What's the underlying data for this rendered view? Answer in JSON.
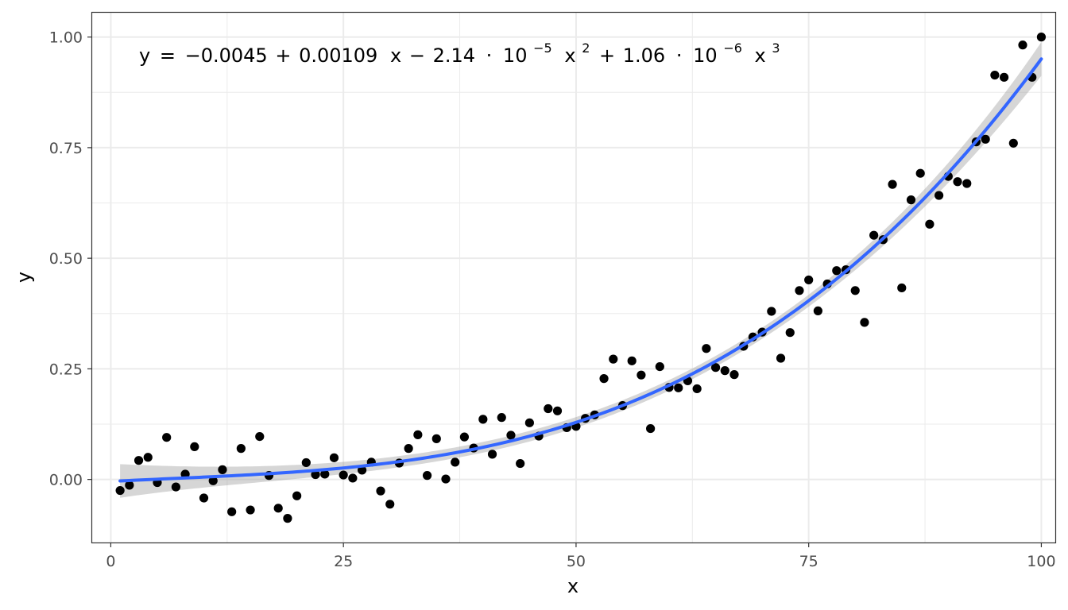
{
  "chart_data": {
    "type": "scatter",
    "title": "",
    "xlabel": "x",
    "ylabel": "y",
    "xlim": [
      -2,
      101.5
    ],
    "ylim": [
      -0.1425,
      1.055
    ],
    "x_ticks": [
      0,
      25,
      50,
      75,
      100
    ],
    "x_tick_labels": [
      "0",
      "25",
      "50",
      "75",
      "100"
    ],
    "y_ticks": [
      0,
      0.25,
      0.5,
      0.75,
      1.0
    ],
    "y_tick_labels": [
      "0.00",
      "0.25",
      "0.50",
      "0.75",
      "1.00"
    ],
    "grid": true,
    "equation": {
      "lhs": "y",
      "eq": "=",
      "c0": "−0.0045",
      "op1": "+",
      "c1": "0.00109",
      "var1": "x",
      "op2": "−",
      "c2_mant": "2.14",
      "dot": "·",
      "base": "10",
      "c2_exp": "−5",
      "var2": "x",
      "pow2": "2",
      "op3": "+",
      "c3_mant": "1.06",
      "c3_exp": "−6",
      "var3": "x",
      "pow3": "3"
    },
    "fit": {
      "coefficients": [
        -0.0045,
        0.00109,
        -2.14e-05,
        1.06e-06
      ],
      "x_range": [
        1,
        100
      ],
      "color": "#3366FF",
      "ribbon_color": "#999999"
    },
    "points": {
      "color": "#000000",
      "x": [
        1,
        2,
        3,
        4,
        5,
        6,
        7,
        8,
        9,
        10,
        11,
        12,
        13,
        14,
        15,
        16,
        17,
        18,
        19,
        20,
        21,
        22,
        23,
        24,
        25,
        26,
        27,
        28,
        29,
        30,
        31,
        32,
        33,
        34,
        35,
        36,
        37,
        38,
        39,
        40,
        41,
        42,
        43,
        44,
        45,
        46,
        47,
        48,
        49,
        50,
        51,
        52,
        53,
        54,
        55,
        56,
        57,
        58,
        59,
        60,
        61,
        62,
        63,
        64,
        65,
        66,
        67,
        68,
        69,
        70,
        71,
        72,
        73,
        74,
        75,
        76,
        77,
        78,
        79,
        80,
        81,
        82,
        83,
        84,
        85,
        86,
        87,
        88,
        89,
        90,
        91,
        92,
        93,
        94,
        95,
        96,
        97,
        98,
        99,
        100
      ],
      "y": [
        -0.025,
        -0.013,
        0.043,
        0.05,
        -0.007,
        0.095,
        -0.017,
        0.012,
        0.074,
        -0.042,
        -0.003,
        0.022,
        -0.073,
        0.07,
        -0.069,
        0.097,
        0.009,
        -0.065,
        -0.088,
        -0.037,
        0.038,
        0.011,
        0.012,
        0.049,
        0.01,
        0.003,
        0.021,
        0.039,
        -0.026,
        -0.056,
        0.037,
        0.07,
        0.101,
        0.009,
        0.092,
        0.001,
        0.039,
        0.096,
        0.071,
        0.136,
        0.057,
        0.14,
        0.1,
        0.036,
        0.128,
        0.098,
        0.16,
        0.155,
        0.117,
        0.12,
        0.138,
        0.146,
        0.228,
        0.272,
        0.167,
        0.268,
        0.236,
        0.115,
        0.255,
        0.208,
        0.207,
        0.223,
        0.205,
        0.296,
        0.253,
        0.246,
        0.237,
        0.301,
        0.322,
        0.333,
        0.38,
        0.274,
        0.332,
        0.427,
        0.451,
        0.381,
        0.442,
        0.472,
        0.474,
        0.427,
        0.355,
        0.552,
        0.542,
        0.667,
        0.433,
        0.632,
        0.692,
        0.577,
        0.642,
        0.685,
        0.673,
        0.669,
        0.763,
        0.769,
        0.914,
        0.909,
        0.76,
        0.982,
        0.909,
        1.0
      ]
    }
  }
}
